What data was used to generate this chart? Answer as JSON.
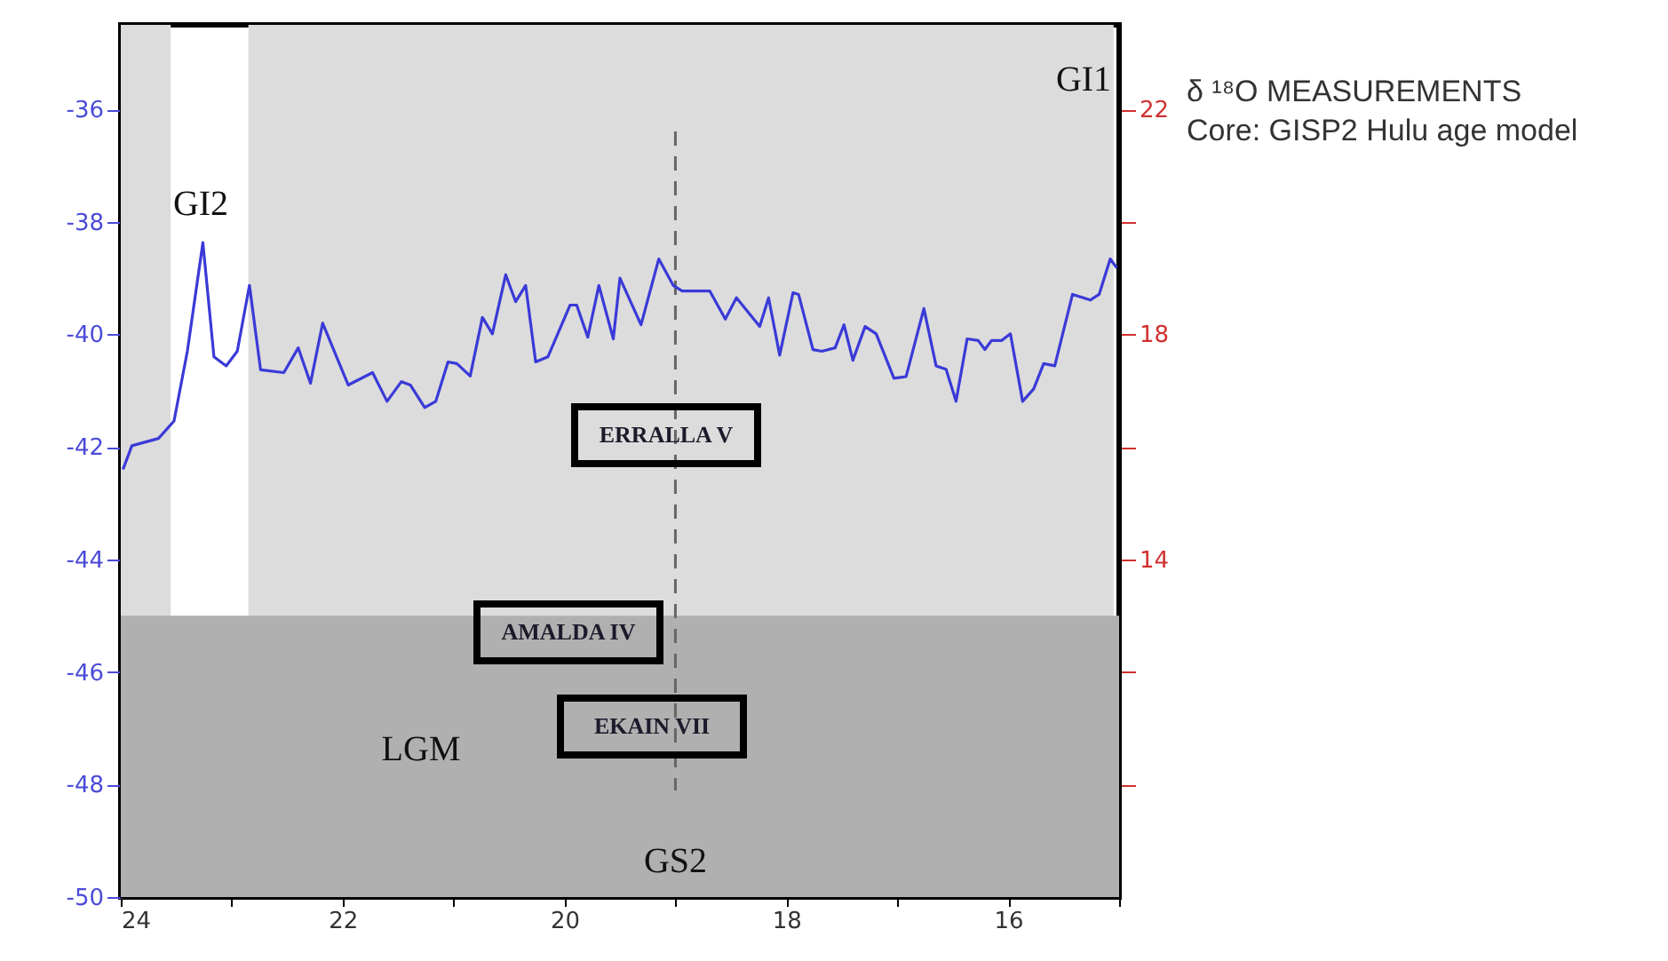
{
  "chart_data": {
    "type": "line",
    "title": "δ ¹⁸O MEASUREMENTS",
    "subtitle": "Core: GISP2 Hulu age model",
    "x": [
      23.98,
      23.9,
      23.66,
      23.52,
      23.4,
      23.26,
      23.16,
      23.05,
      22.95,
      22.84,
      22.74,
      22.53,
      22.4,
      22.29,
      22.18,
      21.95,
      21.73,
      21.6,
      21.47,
      21.39,
      21.26,
      21.16,
      21.05,
      20.97,
      20.85,
      20.74,
      20.65,
      20.53,
      20.44,
      20.35,
      20.26,
      20.15,
      19.95,
      19.89,
      19.79,
      19.69,
      19.56,
      19.5,
      19.31,
      19.15,
      19.02,
      18.94,
      18.69,
      18.55,
      18.45,
      18.24,
      18.16,
      18.06,
      17.94,
      17.89,
      17.76,
      17.68,
      17.56,
      17.48,
      17.4,
      17.29,
      17.19,
      17.03,
      16.92,
      16.76,
      16.65,
      16.56,
      16.47,
      16.37,
      16.27,
      16.21,
      16.15,
      16.06,
      15.98,
      15.87,
      15.77,
      15.68,
      15.58,
      15.42,
      15.26,
      15.18,
      15.08,
      15.02
    ],
    "series": [
      {
        "color": "#3a3ad8",
        "values": [
          -42.4,
          -41.98,
          -41.85,
          -41.54,
          -40.3,
          -38.37,
          -40.4,
          -40.56,
          -40.3,
          -39.13,
          -40.63,
          -40.68,
          -40.24,
          -40.87,
          -39.8,
          -40.9,
          -40.68,
          -41.19,
          -40.84,
          -40.9,
          -41.3,
          -41.19,
          -40.49,
          -40.52,
          -40.74,
          -39.7,
          -39.99,
          -38.94,
          -39.42,
          -39.13,
          -40.49,
          -40.4,
          -39.48,
          -39.48,
          -40.05,
          -39.13,
          -40.08,
          -39.0,
          -39.83,
          -38.66,
          -39.13,
          -39.23,
          -39.23,
          -39.73,
          -39.35,
          -39.86,
          -39.35,
          -40.37,
          -39.26,
          -39.29,
          -40.27,
          -40.3,
          -40.24,
          -39.83,
          -40.46,
          -39.86,
          -39.99,
          -40.78,
          -40.75,
          -39.54,
          -40.56,
          -40.62,
          -41.19,
          -40.08,
          -40.11,
          -40.27,
          -40.11,
          -40.11,
          -39.99,
          -41.19,
          -40.97,
          -40.52,
          -40.56,
          -39.29,
          -39.39,
          -39.29,
          -38.66,
          -38.82
        ]
      }
    ],
    "xlim": [
      24,
      15
    ],
    "xticks": [
      24,
      {
        "value": 23,
        "label": null
      },
      22,
      {
        "value": 21,
        "label": null
      },
      20,
      {
        "value": 19,
        "label": null
      },
      18,
      {
        "value": 17,
        "label": null
      },
      16,
      {
        "value": 15,
        "label": null
      }
    ],
    "ylim": [
      -50,
      -34.5
    ],
    "yticks": [
      -50,
      -48,
      -46,
      -44,
      -42,
      -40,
      -38,
      -36
    ],
    "y2lim": [
      8,
      23.5
    ],
    "y2ticks": [
      {
        "value": 10,
        "label": null
      },
      {
        "value": 12,
        "label": null
      },
      14,
      {
        "value": 16,
        "label": null
      },
      18,
      {
        "value": 20,
        "label": null
      },
      22
    ],
    "bands": [
      {
        "axis": "x",
        "from": 24,
        "to": 23.55,
        "color": "#dcdcdc"
      },
      {
        "axis": "x",
        "from": 22.85,
        "to": 15.05,
        "color": "#dcdcdc"
      },
      {
        "axis": "y",
        "from": -50,
        "to": -45,
        "color": "#b0b0b0"
      }
    ],
    "ref_lines": [
      {
        "axis": "x",
        "value": 19,
        "label": "GS2",
        "color": "#666666",
        "line_style": "dashed"
      }
    ],
    "annotations": [
      "ERRALLA V",
      "AMALDA IV",
      "EKAIN VII",
      "GI2",
      "GI1",
      "LGM"
    ],
    "grid": false,
    "marker": "none",
    "line_style": "solid"
  }
}
